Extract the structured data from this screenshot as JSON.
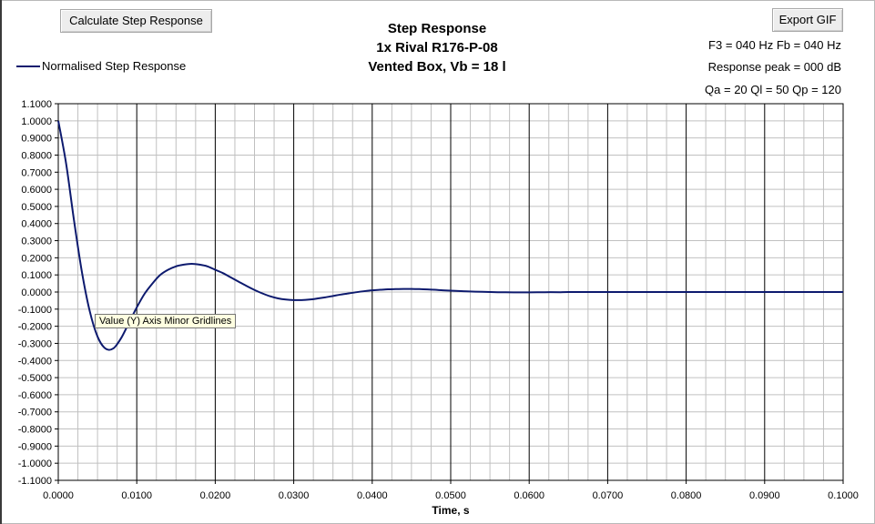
{
  "toolbar": {
    "calculate_label": "Calculate Step Response",
    "export_label": "Export GIF"
  },
  "header": {
    "title_line1": "Step Response",
    "title_line2": "1x Rival R176-P-08",
    "title_line3": "Vented Box, Vb = 18 l"
  },
  "info": {
    "f3_fb": "F3 = 040 Hz  Fb = 040 Hz",
    "response_peak": "Response peak = 000 dB",
    "q_values": "Qa = 20  Ql = 50  Qp = 120"
  },
  "tooltip": {
    "text": "Value (Y) Axis Minor Gridlines"
  },
  "colors": {
    "series": "#0d1a6e",
    "major_grid": "#000000",
    "minor_grid": "#c0c0c0"
  },
  "chart_data": {
    "type": "line",
    "xlabel": "Time, s",
    "ylabel": "",
    "xlim": [
      0,
      0.1
    ],
    "ylim": [
      -1.1,
      1.1
    ],
    "grid": true,
    "legend_placement": "top-left",
    "x_ticks": [
      "0.0000",
      "0.0100",
      "0.0200",
      "0.0300",
      "0.0400",
      "0.0500",
      "0.0600",
      "0.0700",
      "0.0800",
      "0.0900",
      "0.1000"
    ],
    "y_ticks": [
      "1.1000",
      "1.0000",
      "0.9000",
      "0.8000",
      "0.7000",
      "0.6000",
      "0.5000",
      "0.4000",
      "0.3000",
      "0.2000",
      "0.1000",
      "0.0000",
      "-0.1000",
      "-0.2000",
      "-0.3000",
      "-0.4000",
      "-0.5000",
      "-0.6000",
      "-0.7000",
      "-0.8000",
      "-0.9000",
      "-1.0000",
      "-1.1000"
    ],
    "series": [
      {
        "name": "Normalised Step Response",
        "x": [
          0,
          0.001,
          0.002,
          0.003,
          0.004,
          0.005,
          0.006,
          0.007,
          0.008,
          0.009,
          0.01,
          0.011,
          0.012,
          0.013,
          0.014,
          0.015,
          0.016,
          0.017,
          0.018,
          0.019,
          0.02,
          0.021,
          0.022,
          0.023,
          0.024,
          0.025,
          0.026,
          0.027,
          0.028,
          0.029,
          0.03,
          0.031,
          0.032,
          0.033,
          0.034,
          0.035,
          0.036,
          0.037,
          0.038,
          0.039,
          0.04,
          0.041,
          0.042,
          0.043,
          0.044,
          0.045,
          0.046,
          0.047,
          0.048,
          0.049,
          0.05,
          0.052,
          0.054,
          0.056,
          0.058,
          0.06,
          0.062,
          0.064,
          0.065,
          0.07,
          0.075,
          0.08,
          0.085,
          0.09,
          0.095,
          0.1
        ],
        "y": [
          1.0,
          0.75,
          0.42,
          0.12,
          -0.11,
          -0.26,
          -0.33,
          -0.33,
          -0.27,
          -0.18,
          -0.09,
          -0.01,
          0.05,
          0.1,
          0.13,
          0.15,
          0.16,
          0.165,
          0.16,
          0.15,
          0.13,
          0.11,
          0.085,
          0.06,
          0.035,
          0.012,
          -0.008,
          -0.025,
          -0.037,
          -0.044,
          -0.047,
          -0.047,
          -0.044,
          -0.038,
          -0.031,
          -0.023,
          -0.015,
          -0.008,
          -0.001,
          0.005,
          0.01,
          0.013,
          0.016,
          0.017,
          0.018,
          0.018,
          0.017,
          0.015,
          0.013,
          0.01,
          0.008,
          0.004,
          0.001,
          -0.001,
          -0.002,
          -0.002,
          -0.001,
          -0.001,
          0.0,
          0.0,
          0.0,
          0.0,
          0.0,
          0.0,
          0.0,
          0.0
        ]
      }
    ]
  }
}
